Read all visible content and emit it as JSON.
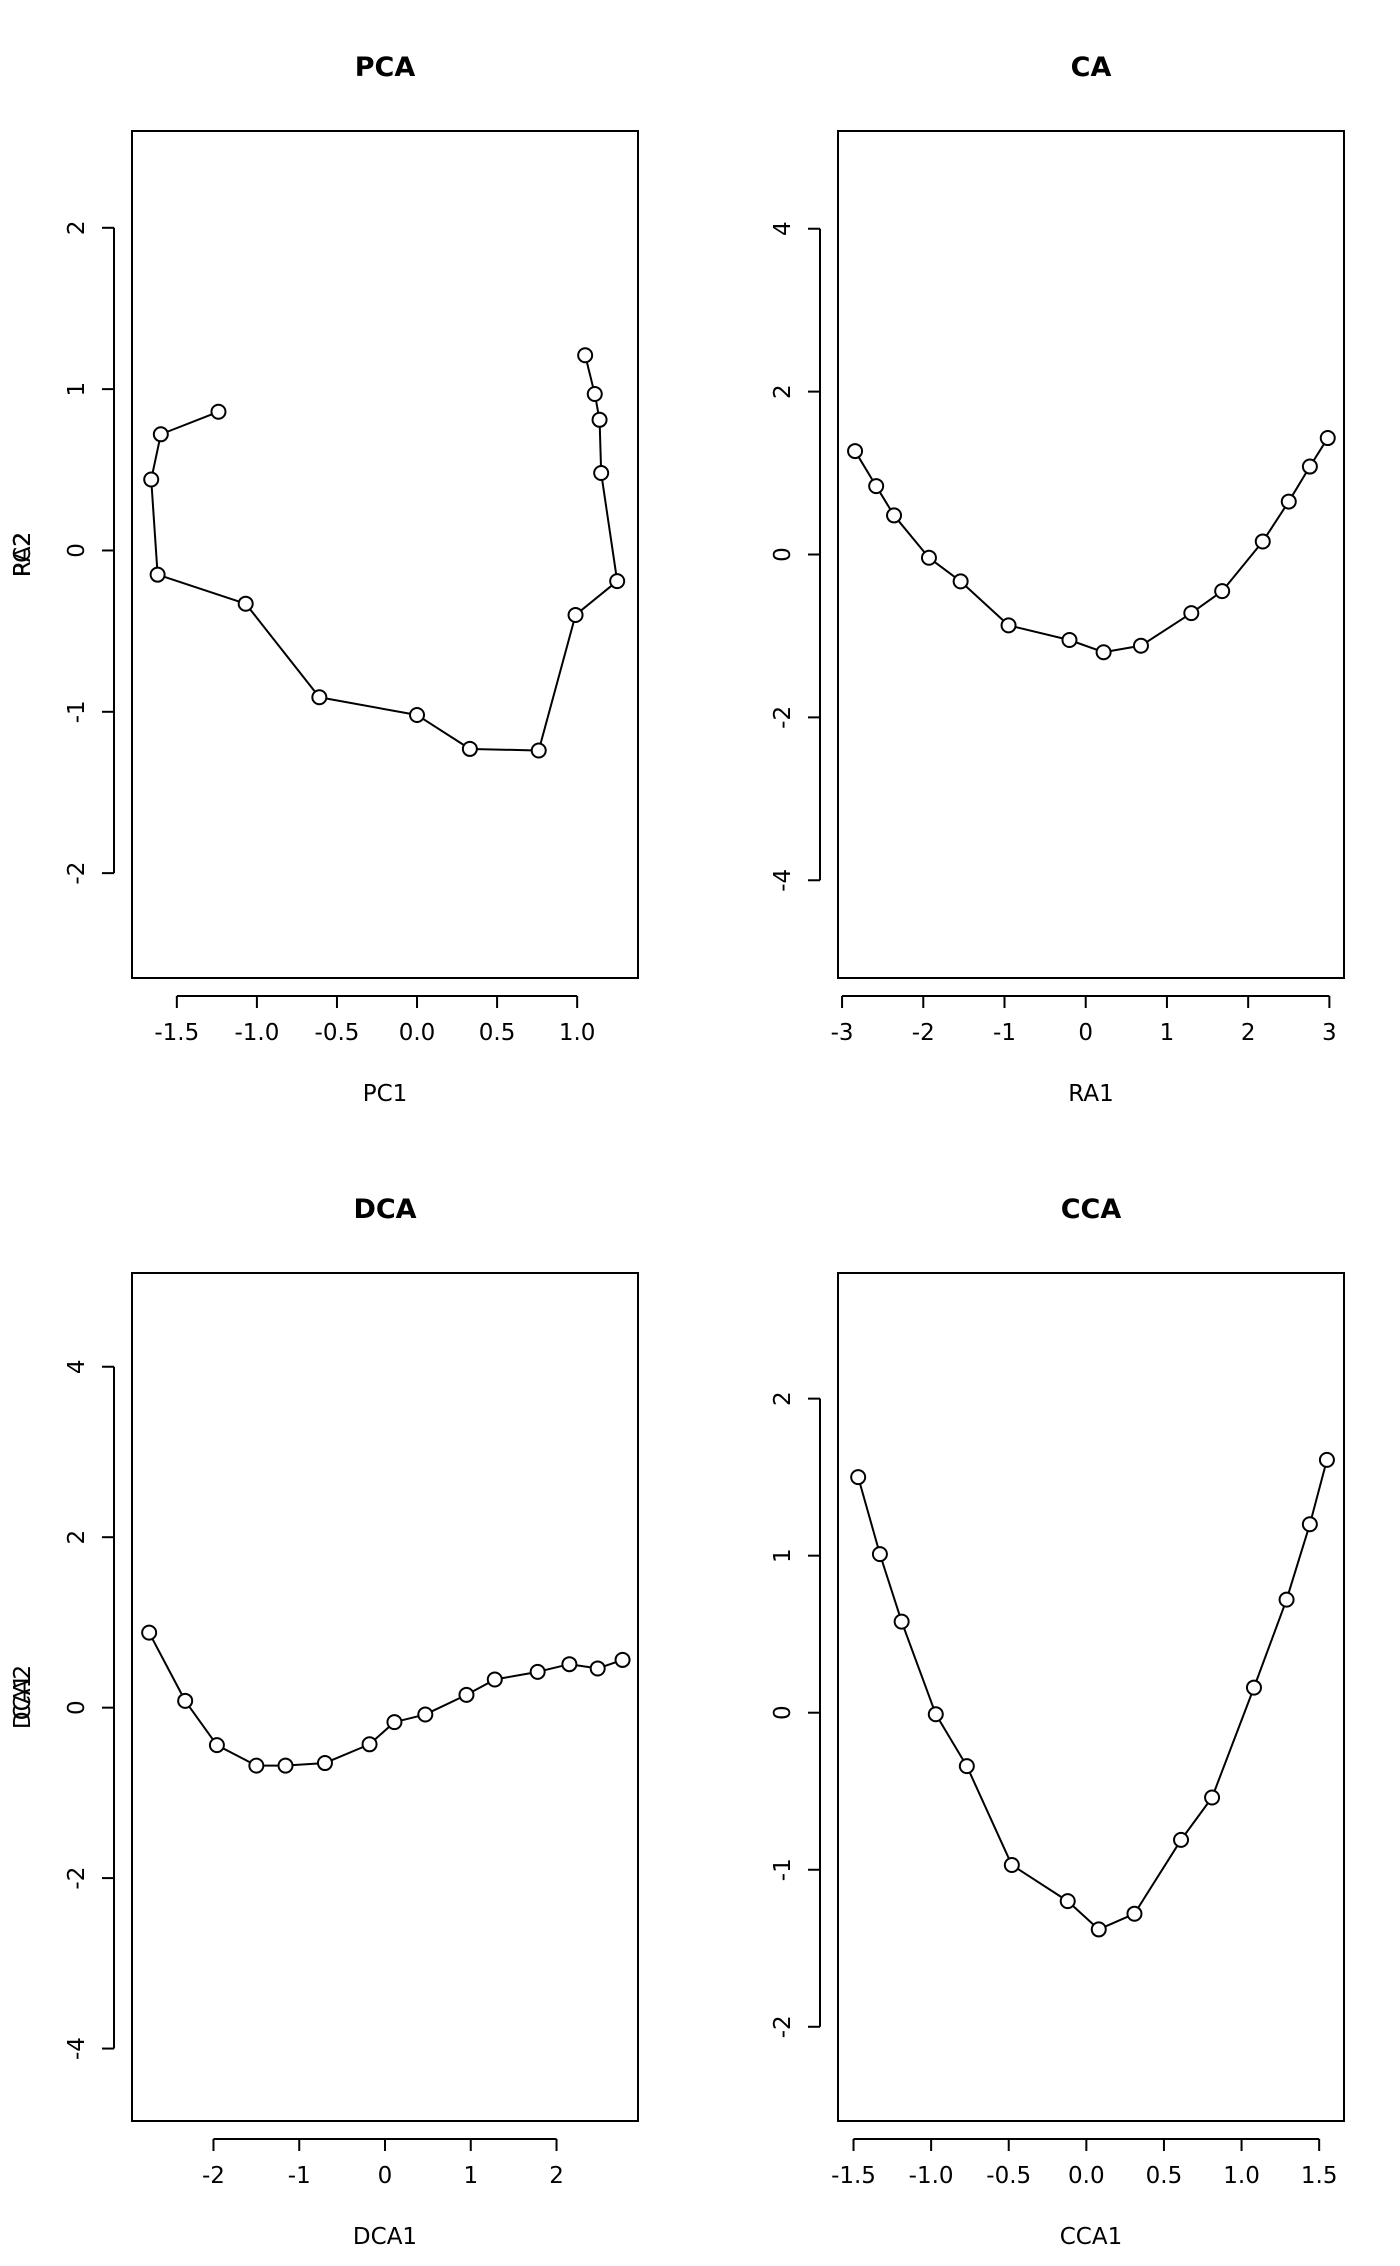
{
  "chart_data": [
    {
      "type": "line",
      "title": "PCA",
      "xlabel": "PC1",
      "ylabel": "PC2",
      "xlim": [
        -1.78,
        1.38
      ],
      "ylim": [
        -2.65,
        2.6
      ],
      "xticks": [
        -1.5,
        -1.0,
        -0.5,
        0.0,
        0.5,
        1.0
      ],
      "xtick_labels": [
        "-1.5",
        "-1.0",
        "-0.5",
        "0.0",
        "0.5",
        "1.0"
      ],
      "yticks": [
        -2,
        -1,
        0,
        1,
        2
      ],
      "ytick_labels": [
        "-2",
        "-1",
        "0",
        "1",
        "2"
      ],
      "grid": false,
      "series": [
        {
          "x": [
            -1.24,
            -1.6,
            -1.66,
            -1.62,
            -1.07,
            -0.61,
            0.0,
            0.33,
            0.76,
            0.99,
            1.25,
            1.15,
            1.14,
            1.11,
            1.05
          ],
          "y": [
            0.86,
            0.72,
            0.44,
            -0.15,
            -0.33,
            -0.91,
            -1.02,
            -1.23,
            -1.24,
            -0.4,
            -0.19,
            0.48,
            0.81,
            0.97,
            1.21
          ]
        }
      ]
    },
    {
      "type": "line",
      "title": "CA",
      "xlabel": "RA1",
      "ylabel": "RA2",
      "xlim": [
        -3.05,
        3.18
      ],
      "ylim": [
        -5.2,
        5.2
      ],
      "xticks": [
        -3,
        -2,
        -1,
        0,
        1,
        2,
        3
      ],
      "xtick_labels": [
        "-3",
        "-2",
        "-1",
        "0",
        "1",
        "2",
        "3"
      ],
      "yticks": [
        -4,
        -2,
        0,
        2,
        4
      ],
      "ytick_labels": [
        "-4",
        "-2",
        "0",
        "2",
        "4"
      ],
      "grid": false,
      "series": [
        {
          "x": [
            -2.84,
            -2.58,
            -2.36,
            -1.93,
            -1.54,
            -0.95,
            -0.2,
            0.22,
            0.68,
            1.3,
            1.68,
            2.18,
            2.5,
            2.76,
            2.98
          ],
          "y": [
            1.27,
            0.84,
            0.48,
            -0.04,
            -0.33,
            -0.87,
            -1.05,
            -1.2,
            -1.12,
            -0.72,
            -0.45,
            0.16,
            0.65,
            1.08,
            1.43
          ]
        }
      ]
    },
    {
      "type": "line",
      "title": "DCA",
      "xlabel": "DCA1",
      "ylabel": "DCA2",
      "xlim": [
        -2.95,
        2.95
      ],
      "ylim": [
        -4.85,
        5.1
      ],
      "xticks": [
        -2,
        -1,
        0,
        1,
        2
      ],
      "xtick_labels": [
        "-2",
        "-1",
        "0",
        "1",
        "2"
      ],
      "yticks": [
        -4,
        -2,
        0,
        2,
        4
      ],
      "ytick_labels": [
        "-4",
        "-2",
        "0",
        "2",
        "4"
      ],
      "grid": false,
      "series": [
        {
          "x": [
            -2.75,
            -2.33,
            -1.96,
            -1.5,
            -1.16,
            -0.7,
            -0.18,
            0.11,
            0.47,
            0.95,
            1.28,
            1.78,
            2.15,
            2.48,
            2.77
          ],
          "y": [
            0.88,
            0.08,
            -0.44,
            -0.68,
            -0.68,
            -0.65,
            -0.43,
            -0.17,
            -0.08,
            0.15,
            0.33,
            0.42,
            0.51,
            0.46,
            0.56
          ]
        }
      ]
    },
    {
      "type": "line",
      "title": "CCA",
      "xlabel": "CCA1",
      "ylabel": "CA1",
      "xlim": [
        -1.6,
        1.66
      ],
      "ylim": [
        -2.6,
        2.8
      ],
      "xticks": [
        -1.5,
        -1.0,
        -0.5,
        0.0,
        0.5,
        1.0,
        1.5
      ],
      "xtick_labels": [
        "-1.5",
        "-1.0",
        "-0.5",
        "0.0",
        "0.5",
        "1.0",
        "1.5"
      ],
      "yticks": [
        -2,
        -1,
        0,
        1,
        2
      ],
      "ytick_labels": [
        "-2",
        "-1",
        "0",
        "1",
        "2"
      ],
      "grid": false,
      "series": [
        {
          "x": [
            -1.47,
            -1.33,
            -1.19,
            -0.97,
            -0.77,
            -0.48,
            -0.12,
            0.08,
            0.31,
            0.61,
            0.81,
            1.08,
            1.29,
            1.44,
            1.55
          ],
          "y": [
            1.5,
            1.01,
            0.58,
            -0.01,
            -0.34,
            -0.97,
            -1.2,
            -1.38,
            -1.28,
            -0.81,
            -0.54,
            0.16,
            0.72,
            1.2,
            1.61
          ]
        }
      ]
    }
  ]
}
